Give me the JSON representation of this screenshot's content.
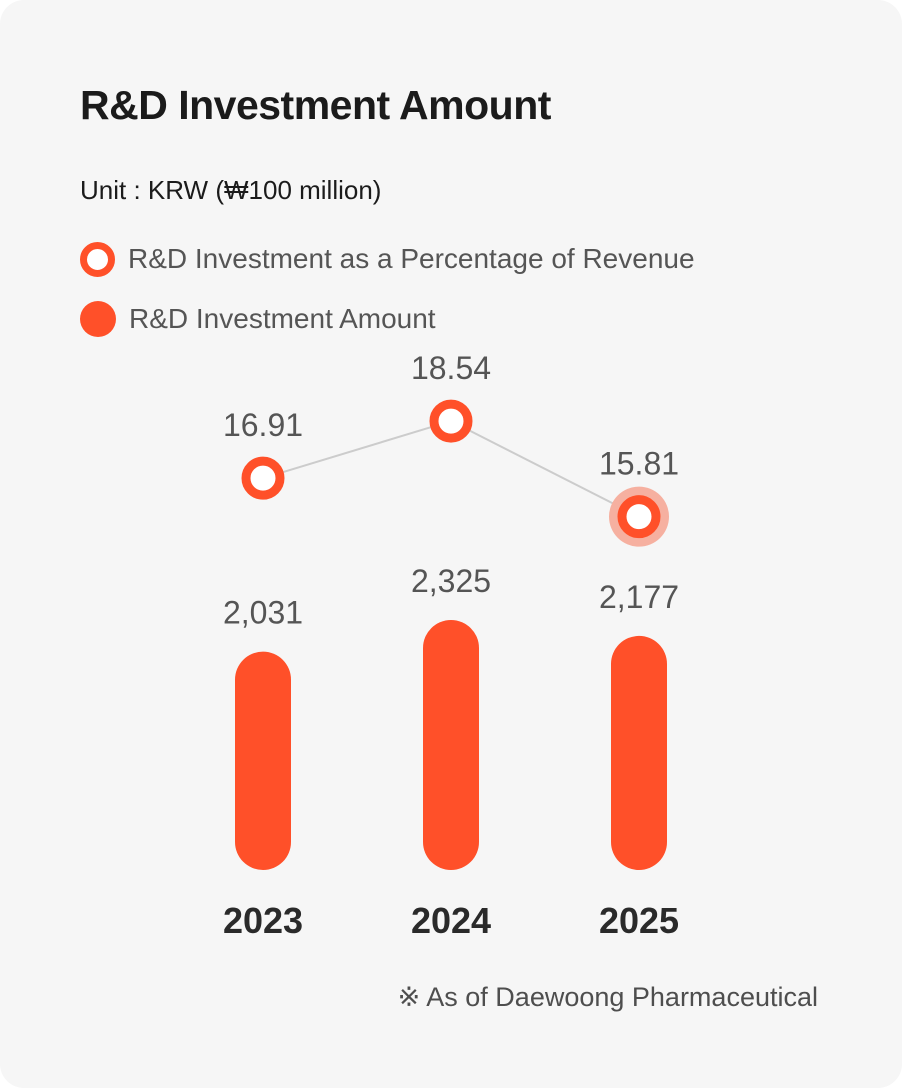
{
  "title": "R&D Investment Amount",
  "unit": "Unit : KRW (₩100 million)",
  "legend": {
    "percentage": "R&D Investment as a Percentage of Revenue",
    "amount": "R&D Investment Amount"
  },
  "note": "※ As of Daewoong Pharmaceutical",
  "colors": {
    "accent": "#ff5029",
    "line": "#cccccc",
    "highlight_halo": "#f6b0a0",
    "label": "#555555",
    "year": "#2a2a2a"
  },
  "chart_data": {
    "type": "bar",
    "categories": [
      "2023",
      "2024",
      "2025"
    ],
    "series": [
      {
        "name": "R&D Investment Amount",
        "kind": "bar",
        "values": [
          2031,
          2325,
          2177
        ],
        "labels": [
          "2,031",
          "2,325",
          "2,177"
        ]
      },
      {
        "name": "R&D Investment as a Percentage of Revenue",
        "kind": "line",
        "values": [
          16.91,
          18.54,
          15.81
        ],
        "labels": [
          "16.91",
          "18.54",
          "15.81"
        ],
        "highlighted_index": 2
      }
    ],
    "title": "R&D Investment Amount",
    "xlabel": "",
    "ylabel": "",
    "grid": false,
    "legend_position": "top-left"
  }
}
